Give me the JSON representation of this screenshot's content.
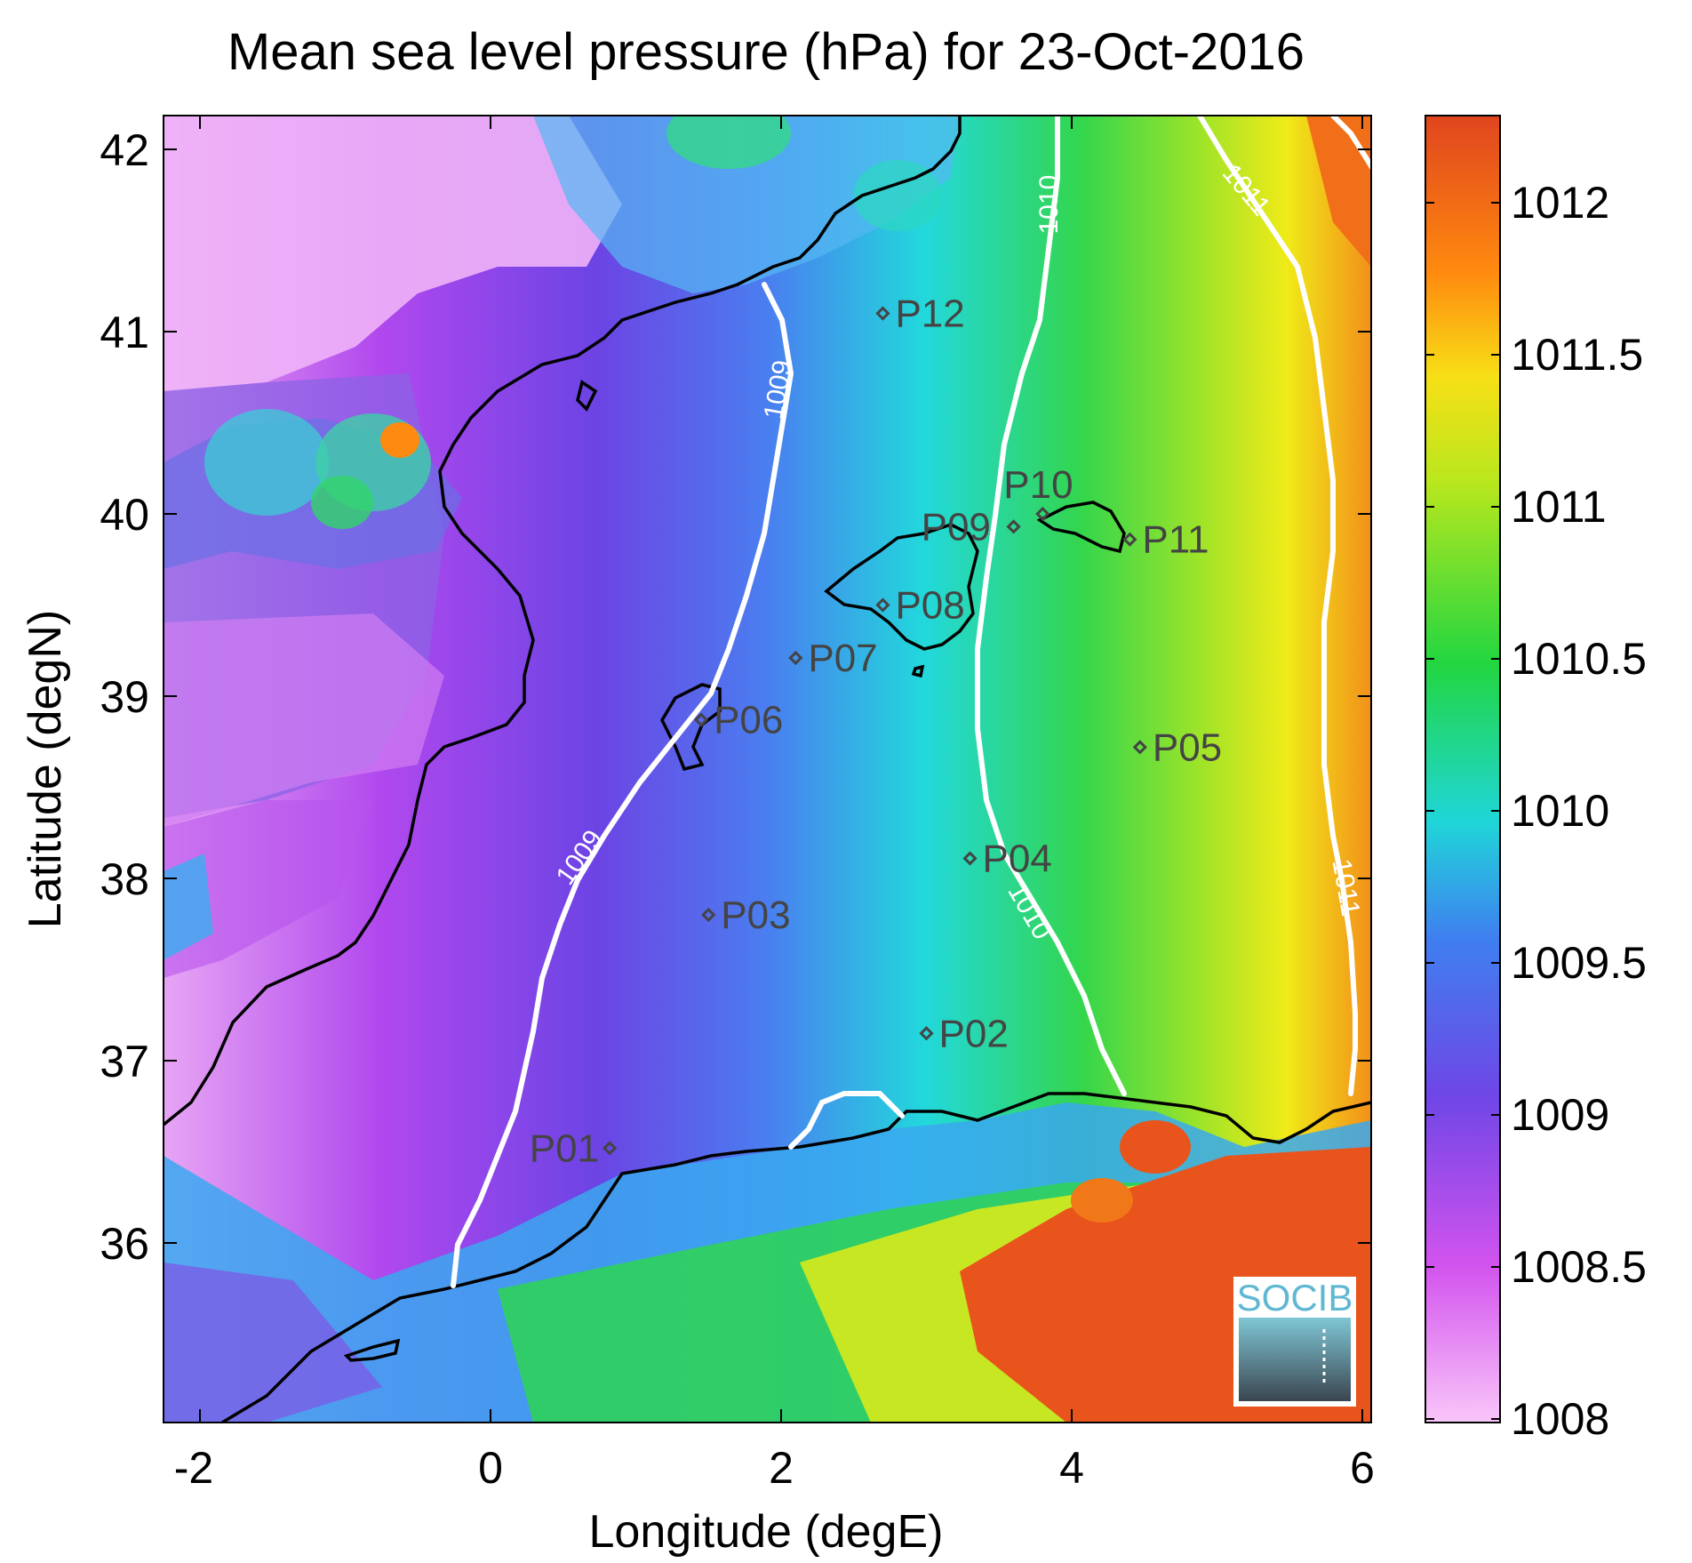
{
  "title": "Mean sea level pressure (hPa) for 23-Oct-2016",
  "xlabel": "Longitude (degE)",
  "ylabel": "Latitude (degN)",
  "x_ticks": [
    "-2",
    "0",
    "2",
    "4",
    "6"
  ],
  "y_ticks": [
    "42",
    "41",
    "40",
    "39",
    "38",
    "37",
    "36"
  ],
  "colorbar": {
    "ticks": [
      "1012",
      "1011.5",
      "1011",
      "1010.5",
      "1010",
      "1009.5",
      "1009",
      "1008.5",
      "1008"
    ],
    "colors": [
      "#f9c6f9",
      "#d253ee",
      "#6f46e6",
      "#35a6f2",
      "#19e1c8",
      "#2ed636",
      "#ecf015",
      "#ff8a0f",
      "#e0451e"
    ]
  },
  "contour_labels": [
    "1009",
    "1009",
    "1010",
    "1010",
    "1011",
    "1011"
  ],
  "points": [
    {
      "label": "P01",
      "lon": 0.82,
      "lat": 36.52
    },
    {
      "label": "P02",
      "lon": 3.0,
      "lat": 37.15
    },
    {
      "label": "P03",
      "lon": 1.5,
      "lat": 37.8
    },
    {
      "label": "P04",
      "lon": 3.3,
      "lat": 38.11
    },
    {
      "label": "P05",
      "lon": 4.47,
      "lat": 38.72
    },
    {
      "label": "P06",
      "lon": 1.45,
      "lat": 38.87
    },
    {
      "label": "P07",
      "lon": 2.1,
      "lat": 39.21
    },
    {
      "label": "P08",
      "lon": 2.7,
      "lat": 39.5
    },
    {
      "label": "P09",
      "lon": 3.6,
      "lat": 39.93
    },
    {
      "label": "P10",
      "lon": 3.8,
      "lat": 40.0
    },
    {
      "label": "P11",
      "lon": 4.4,
      "lat": 39.86
    },
    {
      "label": "P12",
      "lon": 2.7,
      "lat": 41.1
    }
  ],
  "logo_text": "SOCIB"
}
